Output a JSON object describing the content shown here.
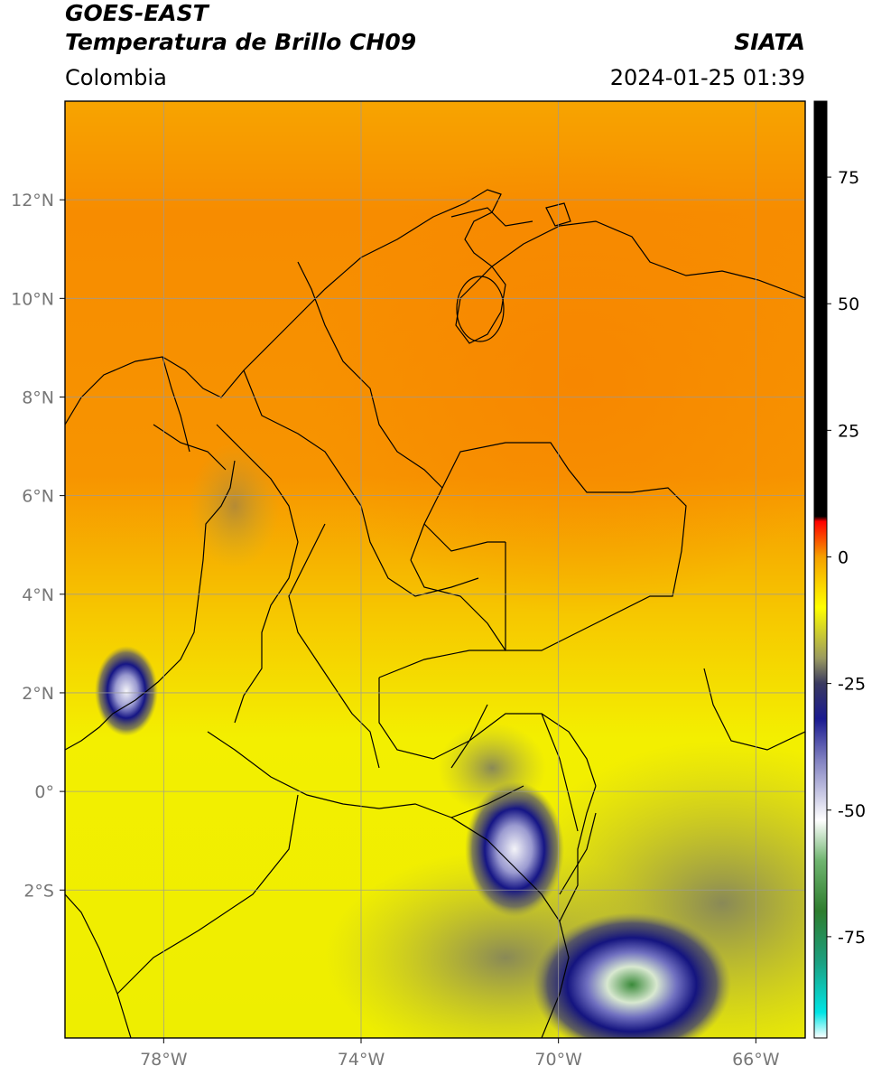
{
  "header": {
    "satellite": "GOES-EAST",
    "product": "Temperatura de Brillo CH09",
    "organization": "SIATA",
    "region": "Colombia",
    "datetime": "2024-01-25 01:39"
  },
  "map": {
    "lon_range": [
      -80,
      -65
    ],
    "lat_range": [
      -5,
      14
    ],
    "lon_ticks": [
      {
        "value": -78,
        "label": "78°W"
      },
      {
        "value": -74,
        "label": "74°W"
      },
      {
        "value": -70,
        "label": "70°W"
      },
      {
        "value": -66,
        "label": "66°W"
      }
    ],
    "lat_ticks": [
      {
        "value": 12,
        "label": "12°N"
      },
      {
        "value": 10,
        "label": "10°N"
      },
      {
        "value": 8,
        "label": "8°N"
      },
      {
        "value": 6,
        "label": "6°N"
      },
      {
        "value": 4,
        "label": "4°N"
      },
      {
        "value": 2,
        "label": "2°N"
      },
      {
        "value": 0,
        "label": "0°"
      },
      {
        "value": -2,
        "label": "2°S"
      }
    ],
    "colors": {
      "warm": "#f78c00",
      "mid": "#f5ef00",
      "cold": "#1b1f8a",
      "grid": "#9a9a9a"
    }
  },
  "colorbar": {
    "range": [
      -95,
      90
    ],
    "ticks": [
      {
        "value": 75,
        "label": "75"
      },
      {
        "value": 50,
        "label": "50"
      },
      {
        "value": 25,
        "label": "25"
      },
      {
        "value": 0,
        "label": "0"
      },
      {
        "value": -25,
        "label": "-25"
      },
      {
        "value": -50,
        "label": "-50"
      },
      {
        "value": -75,
        "label": "-75"
      }
    ],
    "stops": [
      {
        "value": -95,
        "color": "#ffffff"
      },
      {
        "value": -90,
        "color": "#00e5e5"
      },
      {
        "value": -80,
        "color": "#1ca080"
      },
      {
        "value": -70,
        "color": "#2e7d2e"
      },
      {
        "value": -60,
        "color": "#6fb56f"
      },
      {
        "value": -52,
        "color": "#ffffff"
      },
      {
        "value": -40,
        "color": "#8080c0"
      },
      {
        "value": -32,
        "color": "#1a1a90"
      },
      {
        "value": -25,
        "color": "#3a3a60"
      },
      {
        "value": -20,
        "color": "#9a9a60"
      },
      {
        "value": -10,
        "color": "#ffff00"
      },
      {
        "value": 0,
        "color": "#f5a000"
      },
      {
        "value": 7,
        "color": "#ff0000"
      },
      {
        "value": 8,
        "color": "#000000"
      },
      {
        "value": 90,
        "color": "#000000"
      }
    ]
  }
}
